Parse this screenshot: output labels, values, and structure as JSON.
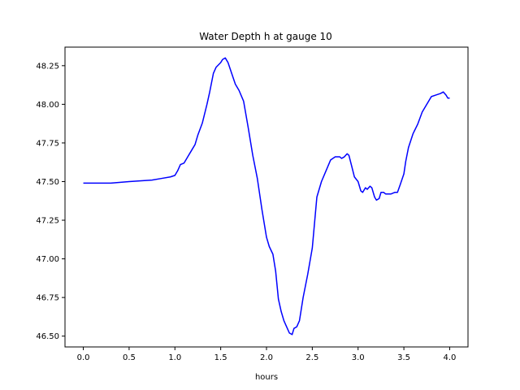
{
  "chart_data": {
    "type": "line",
    "title": "Water Depth h at gauge 10",
    "xlabel": "hours",
    "ylabel": "",
    "xlim": [
      -0.2,
      4.2
    ],
    "ylim": [
      46.43,
      48.37
    ],
    "xticks": [
      {
        "value": 0.0,
        "label": "0.0"
      },
      {
        "value": 0.5,
        "label": "0.5"
      },
      {
        "value": 1.0,
        "label": "1.0"
      },
      {
        "value": 1.5,
        "label": "1.5"
      },
      {
        "value": 2.0,
        "label": "2.0"
      },
      {
        "value": 2.5,
        "label": "2.5"
      },
      {
        "value": 3.0,
        "label": "3.0"
      },
      {
        "value": 3.5,
        "label": "3.5"
      },
      {
        "value": 4.0,
        "label": "4.0"
      }
    ],
    "yticks": [
      {
        "value": 46.5,
        "label": "46.50"
      },
      {
        "value": 46.75,
        "label": "46.75"
      },
      {
        "value": 47.0,
        "label": "47.00"
      },
      {
        "value": 47.25,
        "label": "47.25"
      },
      {
        "value": 47.5,
        "label": "47.50"
      },
      {
        "value": 47.75,
        "label": "47.75"
      },
      {
        "value": 48.0,
        "label": "48.00"
      },
      {
        "value": 48.25,
        "label": "48.25"
      }
    ],
    "grid": false,
    "color": "#0000ff",
    "series": [
      {
        "x": [
          0.0,
          0.3,
          0.5,
          0.75,
          0.85,
          0.95,
          1.0,
          1.03,
          1.06,
          1.1,
          1.14,
          1.18,
          1.22,
          1.25,
          1.3,
          1.35,
          1.38,
          1.42,
          1.45,
          1.5,
          1.52,
          1.55,
          1.58,
          1.62,
          1.66,
          1.7,
          1.75,
          1.8,
          1.85,
          1.9,
          1.95,
          2.0,
          2.03,
          2.07,
          2.1,
          2.13,
          2.16,
          2.19,
          2.22,
          2.25,
          2.28,
          2.3,
          2.33,
          2.36,
          2.4,
          2.45,
          2.5,
          2.55,
          2.6,
          2.65,
          2.7,
          2.75,
          2.8,
          2.82,
          2.85,
          2.88,
          2.9,
          2.93,
          2.96,
          3.0,
          3.03,
          3.05,
          3.08,
          3.1,
          3.13,
          3.15,
          3.18,
          3.2,
          3.23,
          3.25,
          3.28,
          3.3,
          3.33,
          3.36,
          3.4,
          3.43,
          3.46,
          3.5,
          3.52,
          3.55,
          3.6,
          3.65,
          3.7,
          3.75,
          3.8,
          3.85,
          3.9,
          3.93,
          3.96,
          3.98,
          4.0
        ],
        "y": [
          47.49,
          47.49,
          47.5,
          47.51,
          47.52,
          47.53,
          47.54,
          47.57,
          47.61,
          47.62,
          47.66,
          47.7,
          47.74,
          47.8,
          47.88,
          48.0,
          48.08,
          48.2,
          48.24,
          48.27,
          48.29,
          48.3,
          48.27,
          48.2,
          48.13,
          48.09,
          48.02,
          47.85,
          47.67,
          47.52,
          47.32,
          47.14,
          47.08,
          47.03,
          46.92,
          46.74,
          46.66,
          46.6,
          46.56,
          46.52,
          46.51,
          46.55,
          46.56,
          46.6,
          46.75,
          46.9,
          47.07,
          47.4,
          47.5,
          47.57,
          47.64,
          47.66,
          47.66,
          47.65,
          47.66,
          47.68,
          47.67,
          47.6,
          47.53,
          47.5,
          47.44,
          47.43,
          47.46,
          47.45,
          47.47,
          47.46,
          47.4,
          47.38,
          47.39,
          47.43,
          47.43,
          47.42,
          47.42,
          47.42,
          47.43,
          47.43,
          47.48,
          47.55,
          47.63,
          47.72,
          47.81,
          47.87,
          47.95,
          48.0,
          48.05,
          48.06,
          48.07,
          48.08,
          48.06,
          48.04,
          48.04
        ]
      }
    ]
  }
}
